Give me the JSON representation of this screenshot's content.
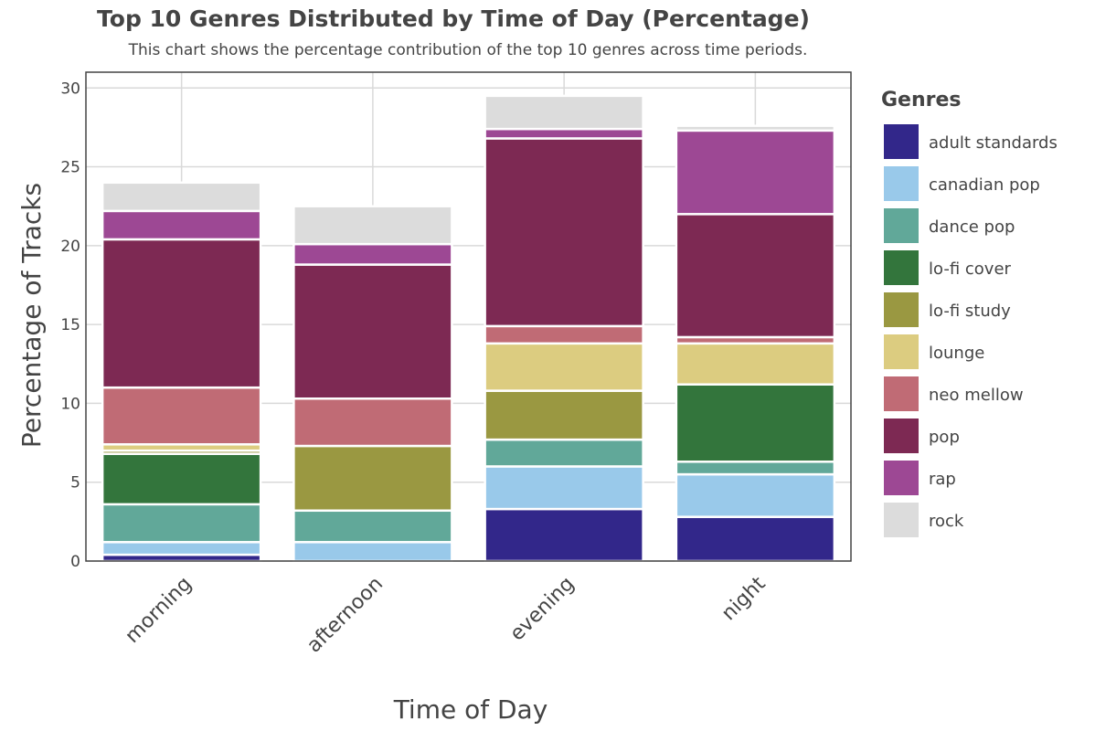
{
  "chart_data": {
    "type": "bar",
    "stacked": true,
    "title": "Top 10 Genres Distributed by Time of Day (Percentage)",
    "subtitle": "This chart shows the percentage contribution of the top 10 genres across time periods.",
    "xlabel": "Time of Day",
    "ylabel": "Percentage of Tracks",
    "ylim": [
      0,
      31
    ],
    "yticks": [
      0,
      5,
      10,
      15,
      20,
      25,
      30
    ],
    "grid": true,
    "categories": [
      "morning",
      "afternoon",
      "evening",
      "night"
    ],
    "legend_title": "Genres",
    "legend_position": "right",
    "series": [
      {
        "name": "adult standards",
        "color": "#32278a",
        "values": [
          0.4,
          0.0,
          3.3,
          2.8
        ]
      },
      {
        "name": "canadian pop",
        "color": "#99c9ea",
        "values": [
          0.8,
          1.2,
          2.7,
          2.7
        ]
      },
      {
        "name": "dance pop",
        "color": "#61a899",
        "values": [
          2.4,
          2.0,
          1.7,
          0.8
        ]
      },
      {
        "name": "lo-fi cover",
        "color": "#33753c",
        "values": [
          3.2,
          0.0,
          0.0,
          4.9
        ]
      },
      {
        "name": "lo-fi study",
        "color": "#9a9841",
        "values": [
          0.2,
          4.1,
          3.1,
          0.0
        ]
      },
      {
        "name": "lounge",
        "color": "#dccc80",
        "values": [
          0.4,
          0.0,
          3.0,
          2.6
        ]
      },
      {
        "name": "neo mellow",
        "color": "#c06b75",
        "values": [
          3.6,
          3.0,
          1.1,
          0.4
        ]
      },
      {
        "name": "pop",
        "color": "#7d2953",
        "values": [
          9.4,
          8.5,
          11.9,
          7.8
        ]
      },
      {
        "name": "rap",
        "color": "#9d4894",
        "values": [
          1.8,
          1.3,
          0.6,
          5.3
        ]
      },
      {
        "name": "rock",
        "color": "#dcdcdc",
        "values": [
          1.8,
          2.4,
          2.1,
          0.3
        ]
      }
    ]
  }
}
